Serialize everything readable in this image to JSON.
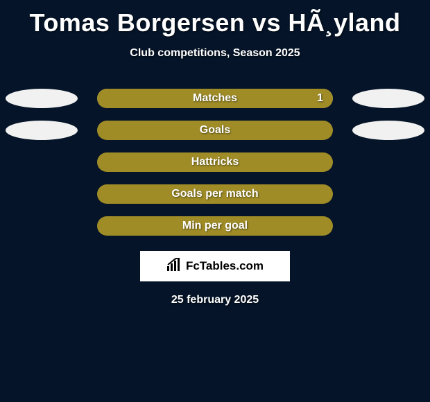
{
  "title": "Tomas Borgersen vs HÃ¸yland",
  "subtitle": "Club competitions, Season 2025",
  "date": "25 february 2025",
  "logo": {
    "text": "FcTables.com"
  },
  "colors": {
    "background": "#051428",
    "bar_accent": "#9f8c27",
    "bar_fill_primary": "#9f8c27",
    "bar_fill_secondary": "#a99634",
    "ellipse_left": "#f1f1f1",
    "ellipse_right": "#f1f1f1",
    "text": "#ffffff"
  },
  "rows": [
    {
      "label": "Matches",
      "value_right": "1",
      "left_ellipse": true,
      "right_ellipse": true,
      "bar_bg": "#8fa0b0",
      "bar_fill": "#9f8c27",
      "fill_pct": 100,
      "left_ellipse_color": "#f1f1f1",
      "right_ellipse_color": "#f1f1f1"
    },
    {
      "label": "Goals",
      "value_right": "",
      "left_ellipse": true,
      "right_ellipse": true,
      "bar_bg": "#9f8c27",
      "bar_fill": "#9f8c27",
      "fill_pct": 100,
      "left_ellipse_color": "#f1f1f1",
      "right_ellipse_color": "#f1f1f1"
    },
    {
      "label": "Hattricks",
      "value_right": "",
      "left_ellipse": false,
      "right_ellipse": false,
      "bar_bg": "#9f8c27",
      "bar_fill": "#9f8c27",
      "fill_pct": 100
    },
    {
      "label": "Goals per match",
      "value_right": "",
      "left_ellipse": false,
      "right_ellipse": false,
      "bar_bg": "#9f8c27",
      "bar_fill": "#9f8c27",
      "fill_pct": 100
    },
    {
      "label": "Min per goal",
      "value_right": "",
      "left_ellipse": false,
      "right_ellipse": false,
      "bar_bg": "#9f8c27",
      "bar_fill": "#9f8c27",
      "fill_pct": 100
    }
  ]
}
